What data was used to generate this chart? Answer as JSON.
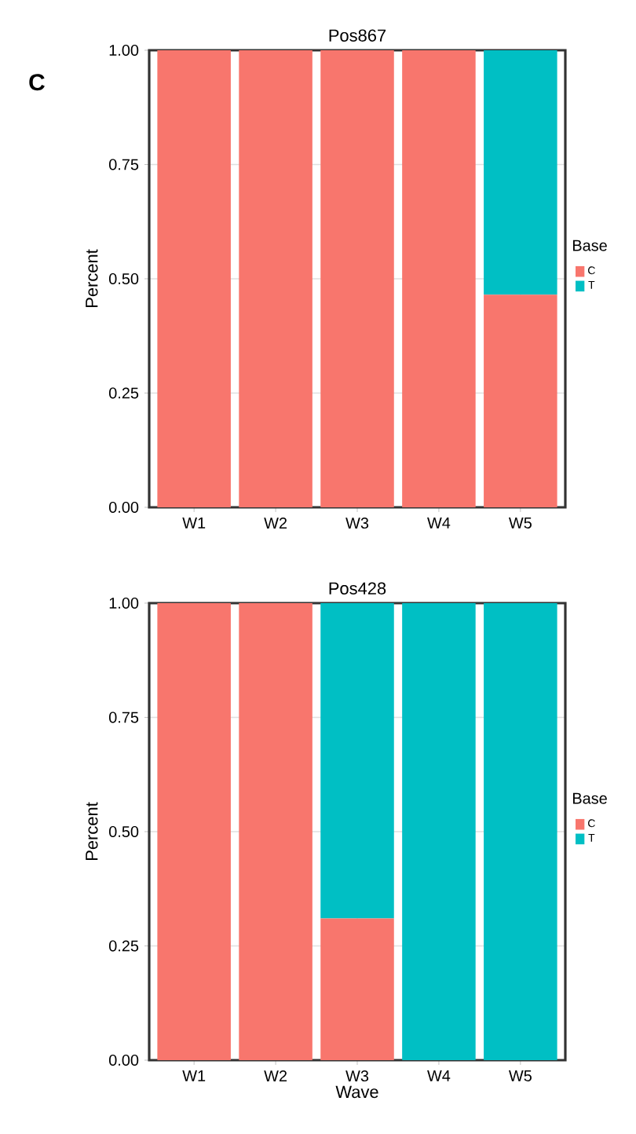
{
  "chart_data": [
    {
      "type": "bar",
      "stacked": true,
      "title": "Pos867",
      "ylabel": "Percent",
      "annotations": [
        "C"
      ],
      "categories": [
        "W1",
        "W2",
        "W3",
        "W4",
        "W5"
      ],
      "series": [
        {
          "name": "C",
          "color": "#f8766d",
          "values": [
            1,
            1,
            1,
            1,
            0.465
          ]
        },
        {
          "name": "T",
          "color": "#00bfc4",
          "values": [
            0,
            0,
            0,
            0,
            0.535
          ]
        }
      ],
      "legend_title": "Base",
      "legend": "right",
      "grid": true,
      "ylim": [
        0,
        1
      ],
      "yticks": [
        {
          "value": 0,
          "label": "0.00"
        },
        {
          "value": 0.25,
          "label": "0.25"
        },
        {
          "value": 0.5,
          "label": "0.50"
        },
        {
          "value": 0.75,
          "label": "0.75"
        },
        {
          "value": 1,
          "label": "1.00"
        }
      ]
    },
    {
      "type": "bar",
      "stacked": true,
      "title": "Pos428",
      "xlabel": "Wave",
      "ylabel": "Percent",
      "categories": [
        "W1",
        "W2",
        "W3",
        "W4",
        "W5"
      ],
      "series": [
        {
          "name": "C",
          "color": "#f8766d",
          "values": [
            1,
            1,
            0.31,
            0,
            0
          ]
        },
        {
          "name": "T",
          "color": "#00bfc4",
          "values": [
            0,
            0,
            0.69,
            1,
            1
          ]
        }
      ],
      "legend_title": "Base",
      "legend": "right",
      "grid": true,
      "ylim": [
        0,
        1
      ],
      "yticks": [
        {
          "value": 0,
          "label": "0.00"
        },
        {
          "value": 0.25,
          "label": "0.25"
        },
        {
          "value": 0.5,
          "label": "0.50"
        },
        {
          "value": 0.75,
          "label": "0.75"
        },
        {
          "value": 1,
          "label": "1.00"
        }
      ]
    }
  ]
}
